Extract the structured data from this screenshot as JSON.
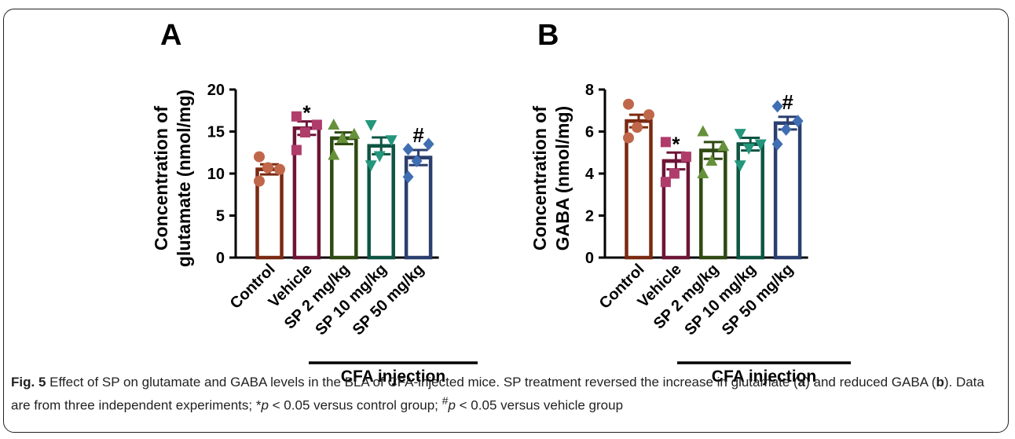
{
  "caption": {
    "label": "Fig. 5",
    "text": "Effect of SP on glutamate and GABA levels in the BLA of CFA-injected mice. SP treatment reversed the increase in glutamate (",
    "a": "a",
    "mid": ") and reduced GABA (",
    "b": "b",
    "end": "). Data are from three independent experiments; *",
    "p1": "p",
    "t1": " < 0.05 versus control group; ",
    "hash": "#",
    "p2": "p",
    "t2": " < 0.05 versus vehicle group"
  },
  "colors": {
    "control": "#7a2a12",
    "vehicle": "#6e1537",
    "sp2": "#2f4a12",
    "sp10": "#0f5443",
    "sp50": "#2b3f6e",
    "dot_control": "#c0674a",
    "dot_vehicle": "#b03c6c",
    "dot_sp2": "#66903a",
    "dot_sp10": "#23967c",
    "dot_sp50": "#3f6fb2"
  },
  "chart_data": [
    {
      "type": "bar",
      "panel": "A",
      "categories": [
        "Control",
        "Vehicle",
        "SP 2 mg/kg",
        "SP 10 mg/kg",
        "SP 50 mg/kg"
      ],
      "values": [
        10.5,
        15.4,
        14.2,
        13.3,
        11.9
      ],
      "sem": [
        0.6,
        0.8,
        0.7,
        1.0,
        0.9
      ],
      "points": [
        [
          12.0,
          10.5,
          10.7,
          9.1
        ],
        [
          16.8,
          15.8,
          14.9,
          12.8
        ],
        [
          15.8,
          14.7,
          14.2,
          12.2
        ],
        [
          15.8,
          14.0,
          12.1,
          11.0
        ],
        [
          12.9,
          13.5,
          11.5,
          9.6
        ]
      ],
      "markers": [
        "circle",
        "square",
        "triangle-up",
        "triangle-down",
        "diamond"
      ],
      "significance": [
        "",
        "*",
        "",
        "",
        "#"
      ],
      "ylabel": [
        "Concentration of",
        "glutamate (nmol/mg)"
      ],
      "yticks": [
        "0",
        "5",
        "10",
        "15",
        "20"
      ],
      "ylim": [
        0,
        20
      ],
      "group_label": "CFA injection",
      "grid": false,
      "legend": "none"
    },
    {
      "type": "bar",
      "panel": "B",
      "categories": [
        "Control",
        "Vehicle",
        "SP 2 mg/kg",
        "SP 10 mg/kg",
        "SP 50 mg/kg"
      ],
      "values": [
        6.5,
        4.6,
        5.1,
        5.4,
        6.4
      ],
      "sem": [
        0.3,
        0.4,
        0.4,
        0.3,
        0.3
      ],
      "points": [
        [
          7.3,
          6.8,
          6.2,
          5.7
        ],
        [
          5.5,
          4.8,
          4.0,
          3.6
        ],
        [
          6.0,
          5.3,
          4.6,
          4.0
        ],
        [
          5.9,
          5.4,
          5.2,
          4.4
        ],
        [
          7.2,
          6.5,
          6.1,
          5.4
        ]
      ],
      "markers": [
        "circle",
        "square",
        "triangle-up",
        "triangle-down",
        "diamond"
      ],
      "significance": [
        "",
        "*",
        "",
        "",
        "#"
      ],
      "ylabel": [
        "Concentration of",
        "GABA (nmol/mg)"
      ],
      "yticks": [
        "0",
        "2",
        "4",
        "6",
        "8"
      ],
      "ylim": [
        0,
        8
      ],
      "group_label": "CFA injection",
      "grid": false,
      "legend": "none"
    }
  ]
}
